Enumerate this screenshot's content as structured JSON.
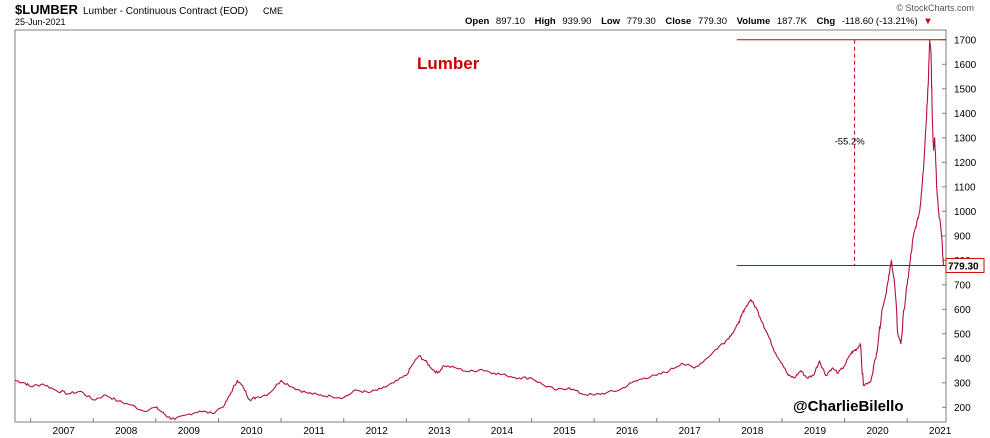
{
  "header": {
    "symbol": "$LUMBER",
    "name": "Lumber - Continuous Contract (EOD)",
    "exchange": "CME",
    "date": "25-Jun-2021",
    "brand": "© StockCharts.com",
    "stats": {
      "open_label": "Open",
      "open": "897.10",
      "high_label": "High",
      "high": "939.90",
      "low_label": "Low",
      "low": "779.30",
      "close_label": "Close",
      "close": "779.30",
      "volume_label": "Volume",
      "volume": "187.7K",
      "chg_label": "Chg",
      "chg": "-118.60 (-13.21%)",
      "chg_arrow": "▼"
    }
  },
  "annotations": {
    "title": "Lumber",
    "drawdown": "-55.2%",
    "last_price": "779.30",
    "credit": "@CharlieBilello"
  },
  "colors": {
    "line": "#b5103c",
    "accent": "#cc0000",
    "grid": "#d9d9d9",
    "frame": "#7f7f7f"
  },
  "chart_data": {
    "type": "line",
    "title": "Lumber",
    "xlabel": "",
    "ylabel": "",
    "x_ticks": [
      "2007",
      "2008",
      "2009",
      "2010",
      "2011",
      "2012",
      "2013",
      "2014",
      "2015",
      "2016",
      "2017",
      "2018",
      "2019",
      "2020",
      "2021"
    ],
    "y_ticks": [
      200,
      300,
      400,
      500,
      600,
      700,
      800,
      900,
      1000,
      1100,
      1200,
      1300,
      1400,
      1500,
      1600,
      1700
    ],
    "xlim": [
      2006.75,
      2021.62
    ],
    "ylim": [
      140,
      1740
    ],
    "grid": false,
    "series": [
      {
        "x": [
          2006.75,
          2006.9,
          2007.0,
          2007.2,
          2007.4,
          2007.6,
          2007.8,
          2008.0,
          2008.2,
          2008.4,
          2008.6,
          2008.8,
          2009.0,
          2009.1,
          2009.2,
          2009.3,
          2009.5,
          2009.7,
          2009.9,
          2010.1,
          2010.2,
          2010.3,
          2010.4,
          2010.5,
          2010.6,
          2010.8,
          2011.0,
          2011.2,
          2011.4,
          2011.6,
          2011.8,
          2012.0,
          2012.2,
          2012.4,
          2012.6,
          2012.8,
          2013.0,
          2013.1,
          2013.2,
          2013.3,
          2013.4,
          2013.5,
          2013.6,
          2013.8,
          2014.0,
          2014.2,
          2014.4,
          2014.6,
          2014.8,
          2015.0,
          2015.2,
          2015.4,
          2015.6,
          2015.8,
          2016.0,
          2016.2,
          2016.4,
          2016.6,
          2016.8,
          2017.0,
          2017.2,
          2017.4,
          2017.6,
          2017.8,
          2018.0,
          2018.1,
          2018.2,
          2018.3,
          2018.35,
          2018.4,
          2018.5,
          2018.6,
          2018.7,
          2018.8,
          2018.9,
          2019.0,
          2019.1,
          2019.2,
          2019.3,
          2019.4,
          2019.5,
          2019.6,
          2019.7,
          2019.8,
          2019.9,
          2020.0,
          2020.1,
          2020.15,
          2020.2,
          2020.25,
          2020.3,
          2020.4,
          2020.5,
          2020.55,
          2020.6,
          2020.65,
          2020.7,
          2020.75,
          2020.8,
          2020.85,
          2020.9,
          2020.95,
          2021.0,
          2021.05,
          2021.1,
          2021.15,
          2021.2,
          2021.25,
          2021.3,
          2021.33,
          2021.36,
          2021.38,
          2021.4,
          2021.42,
          2021.44,
          2021.47,
          2021.5,
          2021.53,
          2021.55,
          2021.58
        ],
        "values": [
          310,
          300,
          285,
          295,
          270,
          255,
          265,
          230,
          250,
          225,
          210,
          185,
          200,
          180,
          160,
          150,
          170,
          185,
          175,
          210,
          260,
          310,
          280,
          230,
          240,
          255,
          310,
          280,
          260,
          250,
          245,
          240,
          270,
          260,
          275,
          300,
          330,
          375,
          410,
          390,
          360,
          340,
          370,
          360,
          345,
          355,
          340,
          330,
          320,
          320,
          290,
          270,
          280,
          255,
          250,
          260,
          270,
          300,
          320,
          330,
          350,
          380,
          360,
          400,
          450,
          470,
          500,
          540,
          570,
          600,
          640,
          600,
          540,
          480,
          420,
          380,
          330,
          320,
          350,
          320,
          330,
          390,
          330,
          360,
          340,
          370,
          420,
          430,
          440,
          460,
          290,
          300,
          400,
          500,
          600,
          650,
          720,
          800,
          700,
          500,
          460,
          600,
          700,
          800,
          900,
          950,
          1000,
          1150,
          1350,
          1500,
          1700,
          1650,
          1400,
          1250,
          1300,
          1100,
          1000,
          950,
          900,
          779
        ]
      }
    ]
  }
}
